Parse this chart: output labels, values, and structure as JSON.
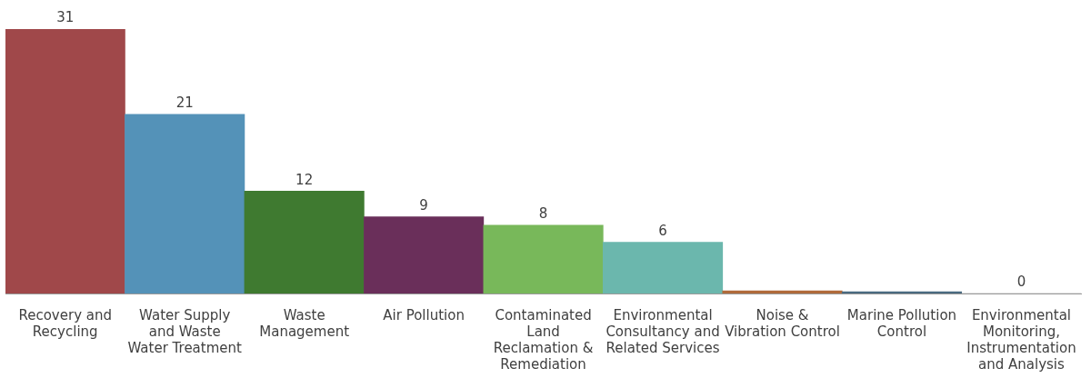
{
  "chart_data": {
    "type": "bar",
    "categories": [
      "Recovery and Recycling",
      "Water Supply and Waste Water Treatment",
      "Waste Management",
      "Air Pollution",
      "Contaminated Land Reclamation & Remediation",
      "Environmental Consultancy and Related Services",
      "Noise & Vibration Control",
      "Marine Pollution Control",
      "Environmental Monitoring, Instrumentation and Analysis"
    ],
    "values": [
      31,
      21,
      12,
      9,
      8,
      6,
      0.3,
      0.2,
      0
    ],
    "value_labels": [
      "31",
      "21",
      "12",
      "9",
      "8",
      "6",
      null,
      null,
      "0"
    ],
    "colors": [
      "#a0484a",
      "#5492b8",
      "#3f7a30",
      "#6a2f5a",
      "#78b85a",
      "#6bb7ad",
      "#b06a3a",
      "#4a6a80",
      "#8a8a8a"
    ],
    "grid": false,
    "legend": false
  }
}
